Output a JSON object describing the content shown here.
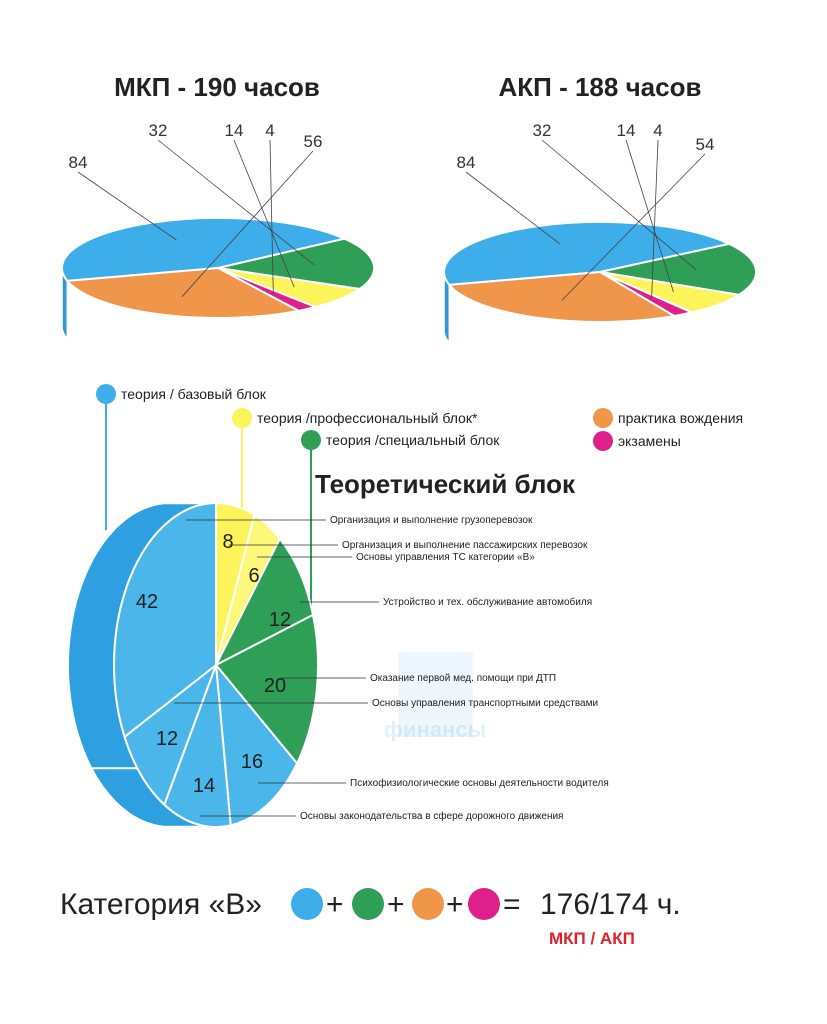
{
  "colors": {
    "blue": "#3daee9",
    "yellow": "#fdf35a",
    "green": "#2f9e57",
    "orange": "#f0964a",
    "pink": "#e0208a",
    "text": "#222222",
    "red": "#e0202a"
  },
  "chart_data": [
    {
      "type": "pie",
      "title": "МКП - 190 часов",
      "slices": [
        {
          "value": 84,
          "color": "blue"
        },
        {
          "value": 32,
          "color": "green"
        },
        {
          "value": 14,
          "color": "yellow"
        },
        {
          "value": 4,
          "color": "pink"
        },
        {
          "value": 56,
          "color": "orange"
        }
      ]
    },
    {
      "type": "pie",
      "title": "АКП - 188 часов",
      "slices": [
        {
          "value": 84,
          "color": "blue"
        },
        {
          "value": 32,
          "color": "green"
        },
        {
          "value": 14,
          "color": "yellow"
        },
        {
          "value": 4,
          "color": "pink"
        },
        {
          "value": 54,
          "color": "orange"
        }
      ]
    },
    {
      "type": "pie",
      "title": "Теоретический блок",
      "slices": [
        {
          "value": 8,
          "color": "yellow",
          "label": "Организация и выполнение грузоперевозок"
        },
        {
          "value": 6,
          "color": "yellow",
          "label": "Организация и выполнение пассажирских перевозок"
        },
        {
          "value": 12,
          "color": "green",
          "label": "Основы управления ТС категории «В»"
        },
        {
          "value": 20,
          "color": "green",
          "label": "Устройство и тех. обслуживание автомобиля"
        },
        {
          "value": 16,
          "color": "blue",
          "label": "Оказание первой мед. помощи при ДТП"
        },
        {
          "value": 14,
          "color": "blue",
          "label": "Основы управления транспортными средствами"
        },
        {
          "value": 12,
          "color": "blue",
          "label": "Психофизиологические основы деятельности водителя"
        },
        {
          "value": 42,
          "color": "blue",
          "label": "Основы законодательства в сфере дорожного движения"
        }
      ]
    }
  ],
  "legend": {
    "theory_base": "теория / базовый блок",
    "theory_prof": "теория /профессиональный блок*",
    "theory_special": "теория /специальный блок",
    "practice": "практика вождения",
    "exams": "экзамены"
  },
  "bottom": {
    "category": "Категория «В»",
    "plus": "+",
    "equals": "=",
    "total": "176/174 ч.",
    "note": "МКП / АКП"
  },
  "watermark": {
    "text": "финансы"
  }
}
